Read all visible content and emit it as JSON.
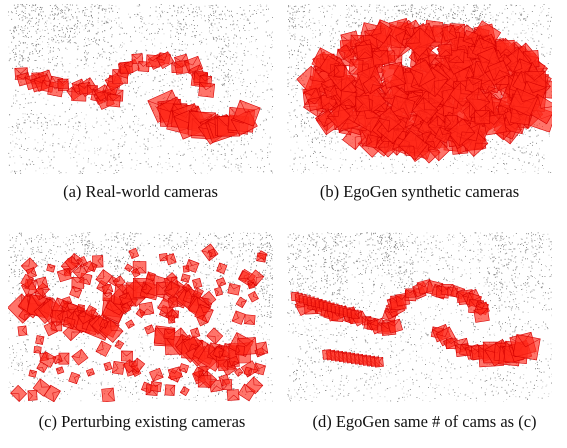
{
  "figure": {
    "panels": [
      {
        "caption": "(a) Real-world cameras",
        "camera_layout": "real-world"
      },
      {
        "caption": "(b) EgoGen synthetic cameras",
        "camera_layout": "dense-synthetic"
      },
      {
        "caption": "(c) Perturbing existing cameras",
        "camera_layout": "perturbed"
      },
      {
        "caption": "(d) EgoGen same # of cams as (c)",
        "camera_layout": "synthetic-same-count"
      }
    ],
    "colors": {
      "camera_fill": "#ff2a1a",
      "camera_stroke": "#d40000",
      "point_cloud": "#4a4a4a",
      "background": "#ffffff"
    }
  }
}
